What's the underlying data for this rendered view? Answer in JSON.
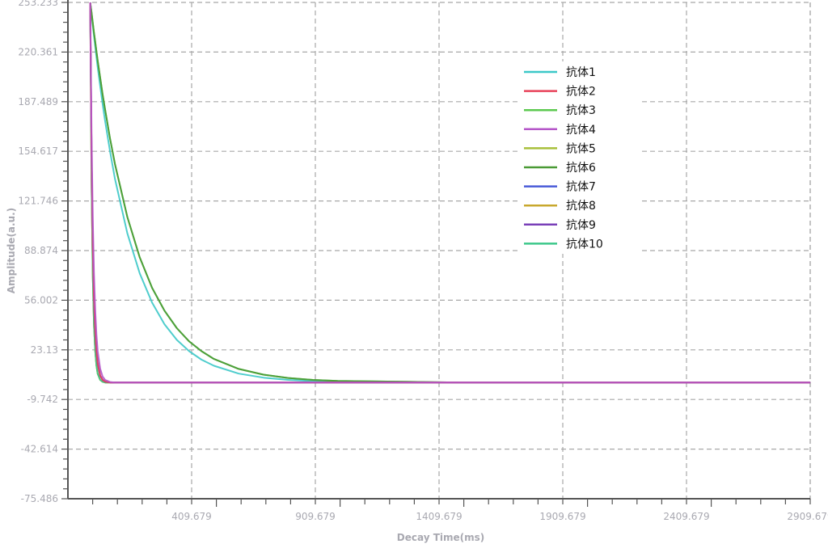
{
  "chart_data": {
    "type": "line",
    "title": "",
    "xlabel": "Decay Time(ms)",
    "ylabel": "Amplitude(a.u.)",
    "xlim": [
      -90.321,
      2909.679
    ],
    "ylim": [
      -75.486,
      253.233
    ],
    "x_ticks": [
      "409.679",
      "909.679",
      "1409.679",
      "1909.679",
      "2409.679",
      "2909.679"
    ],
    "y_ticks": [
      "253.233",
      "220.361",
      "187.489",
      "154.617",
      "121.746",
      "88.874",
      "56.002",
      "23.13",
      "-9.742",
      "-42.614",
      "-75.486"
    ],
    "grid": true,
    "legend_position": "top-right",
    "x": [
      0,
      5,
      10,
      15,
      20,
      25,
      30,
      40,
      50,
      60,
      80,
      100,
      150,
      200,
      250,
      300,
      350,
      400,
      450,
      500,
      600,
      700,
      800,
      900,
      1000,
      1500,
      2000,
      2500,
      2910
    ],
    "series": [
      {
        "name": "抗体1",
        "color": "#3cc8c8",
        "values": [
          253.5,
          245.7,
          238.1,
          231.1,
          223.8,
          217.0,
          210.4,
          197.8,
          186.0,
          174.6,
          154.5,
          136.3,
          100.3,
          73.8,
          54.4,
          40.1,
          29.7,
          22.2,
          16.6,
          12.6,
          7.4,
          4.7,
          3.2,
          2.4,
          2.0,
          1.5,
          1.5,
          1.5,
          1.5
        ]
      },
      {
        "name": "抗体2",
        "color": "#e8435a",
        "values": [
          253.5,
          154.5,
          94.2,
          57.7,
          35.5,
          22.2,
          14.1,
          6.0,
          3.2,
          2.1,
          1.5,
          1.5,
          1.5,
          1.5,
          1.5,
          1.5,
          1.5,
          1.5,
          1.5,
          1.5,
          1.5,
          1.5,
          1.5,
          1.5,
          1.5,
          1.5,
          1.5,
          1.5,
          1.5
        ]
      },
      {
        "name": "抗体3",
        "color": "#5bc94f",
        "values": [
          253.5,
          246.7,
          239.9,
          233.3,
          227.0,
          220.7,
          214.7,
          203.4,
          192.3,
          182.2,
          163.0,
          146.1,
          111.1,
          84.4,
          64.2,
          49.1,
          37.5,
          28.7,
          22.2,
          17.1,
          10.5,
          6.7,
          4.5,
          3.2,
          2.5,
          1.5,
          1.5,
          1.5,
          1.5
        ]
      },
      {
        "name": "抗体4",
        "color": "#b455c8",
        "values": [
          253.5,
          167.6,
          111.1,
          73.8,
          49.1,
          33.0,
          22.2,
          10.6,
          5.4,
          3.2,
          1.8,
          1.5,
          1.5,
          1.5,
          1.5,
          1.5,
          1.5,
          1.5,
          1.5,
          1.5,
          1.5,
          1.5,
          1.5,
          1.5,
          1.5,
          1.5,
          1.5,
          1.5,
          1.5
        ]
      },
      {
        "name": "抗体5",
        "color": "#a8c03a",
        "values": [
          253.5,
          136.3,
          73.8,
          40.1,
          22.2,
          12.6,
          7.4,
          3.2,
          2.0,
          1.5,
          1.5,
          1.5,
          1.5,
          1.5,
          1.5,
          1.5,
          1.5,
          1.5,
          1.5,
          1.5,
          1.5,
          1.5,
          1.5,
          1.5,
          1.5,
          1.5,
          1.5,
          1.5,
          1.5
        ]
      },
      {
        "name": "抗体6",
        "color": "#4a9a35",
        "values": [
          253.5,
          246.7,
          239.9,
          233.3,
          227.0,
          220.7,
          214.7,
          203.4,
          192.3,
          182.2,
          163.0,
          146.1,
          111.1,
          84.4,
          64.2,
          49.1,
          37.5,
          28.7,
          22.2,
          17.1,
          10.5,
          6.7,
          4.5,
          3.2,
          2.5,
          1.5,
          1.5,
          1.5,
          1.5
        ]
      },
      {
        "name": "抗体7",
        "color": "#4a5bd8",
        "values": [
          253.5,
          154.5,
          94.2,
          57.7,
          35.5,
          22.2,
          14.1,
          6.0,
          3.2,
          2.1,
          1.5,
          1.5,
          1.5,
          1.5,
          1.5,
          1.5,
          1.5,
          1.5,
          1.5,
          1.5,
          1.5,
          1.5,
          1.5,
          1.5,
          1.5,
          1.5,
          1.5,
          1.5,
          1.5
        ]
      },
      {
        "name": "抗体8",
        "color": "#c8a82e",
        "values": [
          253.5,
          136.3,
          73.8,
          40.1,
          22.2,
          12.6,
          7.4,
          3.2,
          2.0,
          1.5,
          1.5,
          1.5,
          1.5,
          1.5,
          1.5,
          1.5,
          1.5,
          1.5,
          1.5,
          1.5,
          1.5,
          1.5,
          1.5,
          1.5,
          1.5,
          1.5,
          1.5,
          1.5,
          1.5
        ]
      },
      {
        "name": "抗体9",
        "color": "#7a40b8",
        "values": [
          253.5,
          154.5,
          94.2,
          57.7,
          35.5,
          22.2,
          14.1,
          6.0,
          3.2,
          2.1,
          1.5,
          1.5,
          1.5,
          1.5,
          1.5,
          1.5,
          1.5,
          1.5,
          1.5,
          1.5,
          1.5,
          1.5,
          1.5,
          1.5,
          1.5,
          1.5,
          1.5,
          1.5,
          1.5
        ]
      },
      {
        "name": "抗体10",
        "color": "#3cc88a",
        "values": [
          253.5,
          136.3,
          73.8,
          40.1,
          22.2,
          12.6,
          7.4,
          3.2,
          2.0,
          1.5,
          1.5,
          1.5,
          1.5,
          1.5,
          1.5,
          1.5,
          1.5,
          1.5,
          1.5,
          1.5,
          1.5,
          1.5,
          1.5,
          1.5,
          1.5,
          1.5,
          1.5,
          1.5,
          1.5
        ]
      }
    ]
  }
}
